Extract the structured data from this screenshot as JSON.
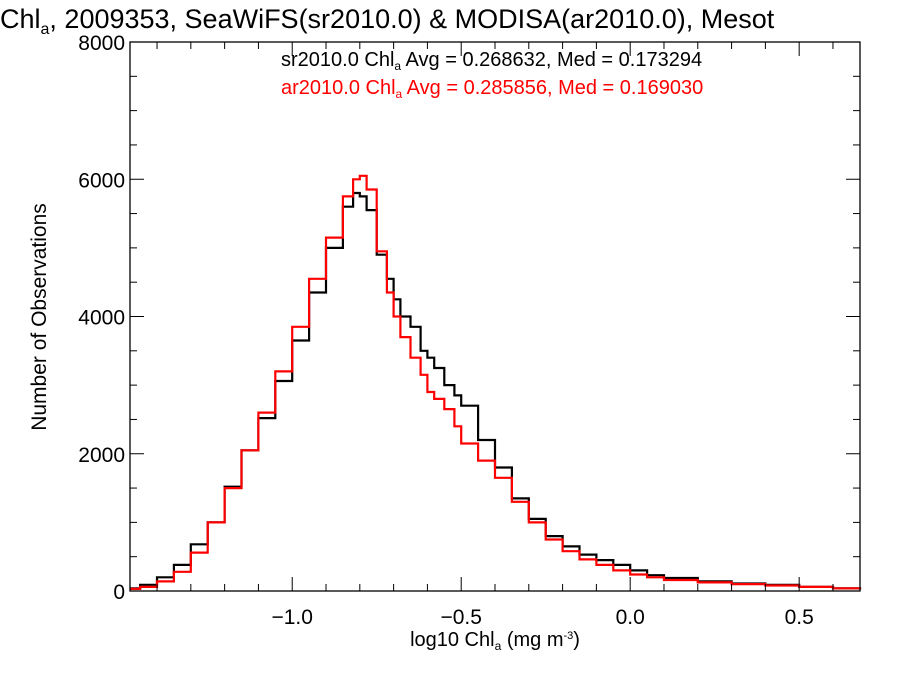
{
  "title": {
    "pre": "Chl",
    "sub": "a",
    "post": ", 2009353, SeaWiFS(sr2010.0) & MODISA(ar2010.0), Mesot"
  },
  "stats": [
    {
      "pre": "sr2010.0 Chl",
      "sub": "a",
      "post": " Avg = 0.268632, Med = 0.173294",
      "color": "#000000"
    },
    {
      "pre": "ar2010.0 Chl",
      "sub": "a",
      "post": " Avg = 0.285856, Med = 0.169030",
      "color": "#ff0000"
    }
  ],
  "xlabel": {
    "pre": "log10 Chl",
    "sub": "a",
    "mid": " (mg m",
    "sup": "-3",
    "post": ")"
  },
  "ylabel": "Number of Observations",
  "chart_data": {
    "type": "line",
    "style": "histogram-step",
    "xlim": [
      -1.48,
      0.68
    ],
    "ylim": [
      0,
      8000
    ],
    "xticks": [
      -1.0,
      -0.5,
      0.0,
      0.5
    ],
    "xtick_labels": [
      "−1.0",
      "−0.5",
      "0.0",
      "0.5"
    ],
    "yticks": [
      0,
      2000,
      4000,
      6000,
      8000
    ],
    "ytick_labels": [
      "0",
      "2000",
      "4000",
      "6000",
      "8000"
    ],
    "grid": false,
    "series": [
      {
        "name": "sr2010.0",
        "color": "#000000",
        "x": [
          -1.48,
          -1.45,
          -1.4,
          -1.35,
          -1.3,
          -1.25,
          -1.2,
          -1.15,
          -1.1,
          -1.05,
          -1.0,
          -0.95,
          -0.9,
          -0.85,
          -0.82,
          -0.8,
          -0.78,
          -0.75,
          -0.72,
          -0.7,
          -0.68,
          -0.65,
          -0.62,
          -0.6,
          -0.58,
          -0.55,
          -0.52,
          -0.5,
          -0.45,
          -0.4,
          -0.35,
          -0.3,
          -0.25,
          -0.2,
          -0.15,
          -0.1,
          -0.05,
          0.0,
          0.05,
          0.1,
          0.2,
          0.3,
          0.4,
          0.5,
          0.6,
          0.68
        ],
        "y": [
          40,
          90,
          200,
          380,
          680,
          1000,
          1520,
          2050,
          2520,
          3060,
          3650,
          4350,
          5000,
          5600,
          5800,
          5750,
          5550,
          4900,
          4550,
          4250,
          4000,
          3850,
          3500,
          3400,
          3250,
          3000,
          2850,
          2700,
          2200,
          1800,
          1350,
          1050,
          800,
          650,
          530,
          450,
          380,
          300,
          230,
          190,
          140,
          110,
          90,
          60,
          40,
          20
        ]
      },
      {
        "name": "ar2010.0",
        "color": "#ff0000",
        "x": [
          -1.48,
          -1.45,
          -1.4,
          -1.35,
          -1.3,
          -1.25,
          -1.2,
          -1.15,
          -1.1,
          -1.05,
          -1.0,
          -0.95,
          -0.9,
          -0.85,
          -0.82,
          -0.8,
          -0.78,
          -0.75,
          -0.72,
          -0.7,
          -0.68,
          -0.65,
          -0.62,
          -0.6,
          -0.58,
          -0.55,
          -0.52,
          -0.5,
          -0.45,
          -0.4,
          -0.35,
          -0.3,
          -0.25,
          -0.2,
          -0.15,
          -0.1,
          -0.05,
          0.0,
          0.05,
          0.1,
          0.2,
          0.3,
          0.4,
          0.5,
          0.6,
          0.68
        ],
        "y": [
          30,
          60,
          140,
          280,
          560,
          1000,
          1500,
          2050,
          2600,
          3200,
          3850,
          4550,
          5150,
          5750,
          6000,
          6050,
          5850,
          4950,
          4350,
          4000,
          3700,
          3400,
          3150,
          2900,
          2800,
          2650,
          2400,
          2150,
          1900,
          1650,
          1300,
          1000,
          750,
          580,
          460,
          380,
          300,
          240,
          200,
          160,
          125,
          100,
          80,
          60,
          40,
          20
        ]
      }
    ]
  }
}
